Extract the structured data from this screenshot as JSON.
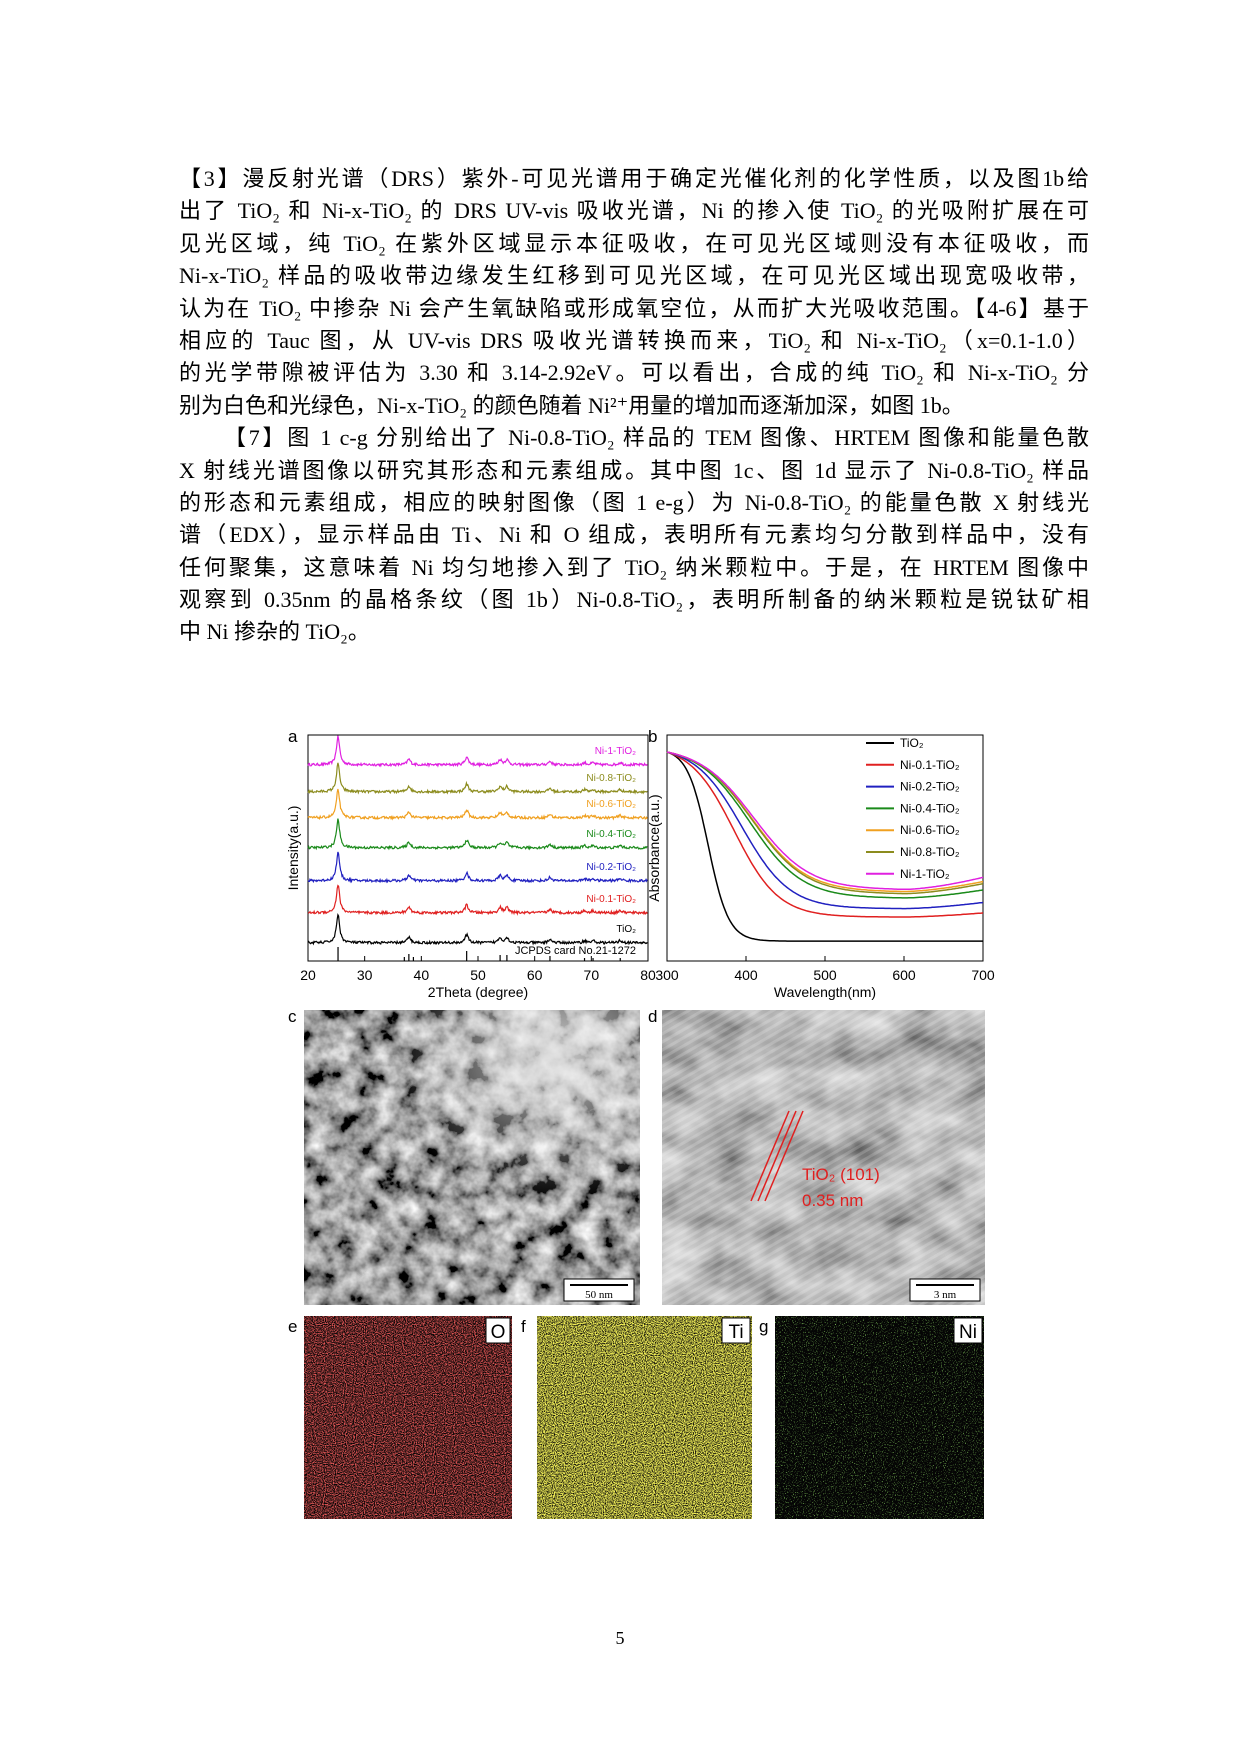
{
  "paragraphs": [
    {
      "lines": [
        "【3】漫反射光谱（DRS）紫外-可见光谱用于确定光催化剂的化学性质，以及图1b给",
        "出了 TiO₂ 和 Ni-x-TiO₂ 的 DRS UV-vis 吸收光谱，Ni 的掺入使 TiO₂ 的光吸附扩展在可",
        "见光区域，纯 TiO₂ 在紫外区域显示本征吸收，在可见光区域则没有本征吸收，而",
        "Ni-x-TiO₂ 样品的吸收带边缘发生红移到可见光区域，在可见光区域出现宽吸收带，",
        "认为在 TiO₂ 中掺杂 Ni 会产生氧缺陷或形成氧空位，从而扩大光吸收范围。【4-6】基于",
        "相应的 Tauc 图，从 UV-vis DRS 吸收光谱转换而来，TiO₂ 和 Ni-x-TiO₂（x=0.1-1.0）",
        "的光学带隙被评估为 3.30 和 3.14-2.92eV。可以看出，合成的纯 TiO₂ 和 Ni-x-TiO₂ 分",
        "别为白色和光绿色，Ni-x-TiO₂ 的颜色随着 Ni²⁺用量的增加而逐渐加深，如图 1b。"
      ]
    },
    {
      "lines": [
        "【7】图 1 c-g 分别给出了 Ni-0.8-TiO₂ 样品的 TEM 图像、HRTEM 图像和能量色散",
        "X 射线光谱图像以研究其形态和元素组成。其中图 1c、图 1d 显示了 Ni-0.8-TiO₂ 样品",
        "的形态和元素组成，相应的映射图像（图 1 e-g）为 Ni-0.8-TiO₂ 的能量色散 X 射线光",
        "谱（EDX），显示样品由 Ti、Ni 和 O 组成，表明所有元素均匀分散到样品中，没有",
        "任何聚集，这意味着 Ni 均匀地掺入到了 TiO₂ 纳米颗粒中。于是，在 HRTEM 图像中",
        "观察到 0.35nm 的晶格条纹（图 1b）Ni-0.8-TiO₂，表明所制备的纳米颗粒是锐钛矿相",
        "中 Ni 掺杂的 TiO₂。"
      ]
    }
  ],
  "figure": {
    "a": {
      "letter": "a",
      "xlabel": "2Theta (degree)",
      "ylabel": "Intensity(a.u.)",
      "xticks": [
        20,
        30,
        40,
        50,
        60,
        70,
        80
      ],
      "series": [
        {
          "name": "Ni-1-TiO₂",
          "color": "#e020e0"
        },
        {
          "name": "Ni-0.8-TiO₂",
          "color": "#8c8c1e"
        },
        {
          "name": "Ni-0.6-TiO₂",
          "color": "#f0a020"
        },
        {
          "name": "Ni-0.4-TiO₂",
          "color": "#1a8a1a"
        },
        {
          "name": "Ni-0.2-TiO₂",
          "color": "#2020c0"
        },
        {
          "name": "Ni-0.1-TiO₂",
          "color": "#e02020"
        },
        {
          "name": "TiO₂",
          "color": "#000000"
        }
      ],
      "reference": "JCPDS card No.21-1272"
    },
    "b": {
      "letter": "b",
      "xlabel": "Wavelength(nm)",
      "ylabel": "Absorbance(a.u.)",
      "xticks": [
        300,
        400,
        500,
        600,
        700
      ],
      "series": [
        {
          "name": "TiO₂",
          "color": "#000000"
        },
        {
          "name": "Ni-0.1-TiO₂",
          "color": "#e02020"
        },
        {
          "name": "Ni-0.2-TiO₂",
          "color": "#2020c0"
        },
        {
          "name": "Ni-0.4-TiO₂",
          "color": "#1a8a1a"
        },
        {
          "name": "Ni-0.6-TiO₂",
          "color": "#f0a020"
        },
        {
          "name": "Ni-0.8-TiO₂",
          "color": "#8c8c1e"
        },
        {
          "name": "Ni-1-TiO₂",
          "color": "#e020e0"
        }
      ]
    },
    "c": {
      "letter": "c",
      "scale_bar": "50 nm"
    },
    "d": {
      "letter": "d",
      "scale_bar": "3 nm",
      "annotation": [
        "TiO₂ (101)",
        "0.35 nm"
      ]
    },
    "e": {
      "letter": "e",
      "element": "O",
      "color": "#d42020"
    },
    "f": {
      "letter": "f",
      "element": "Ti",
      "color": "#e8e020"
    },
    "g": {
      "letter": "g",
      "element": "Ni",
      "color": "#3aa020"
    }
  },
  "page_number": "5"
}
